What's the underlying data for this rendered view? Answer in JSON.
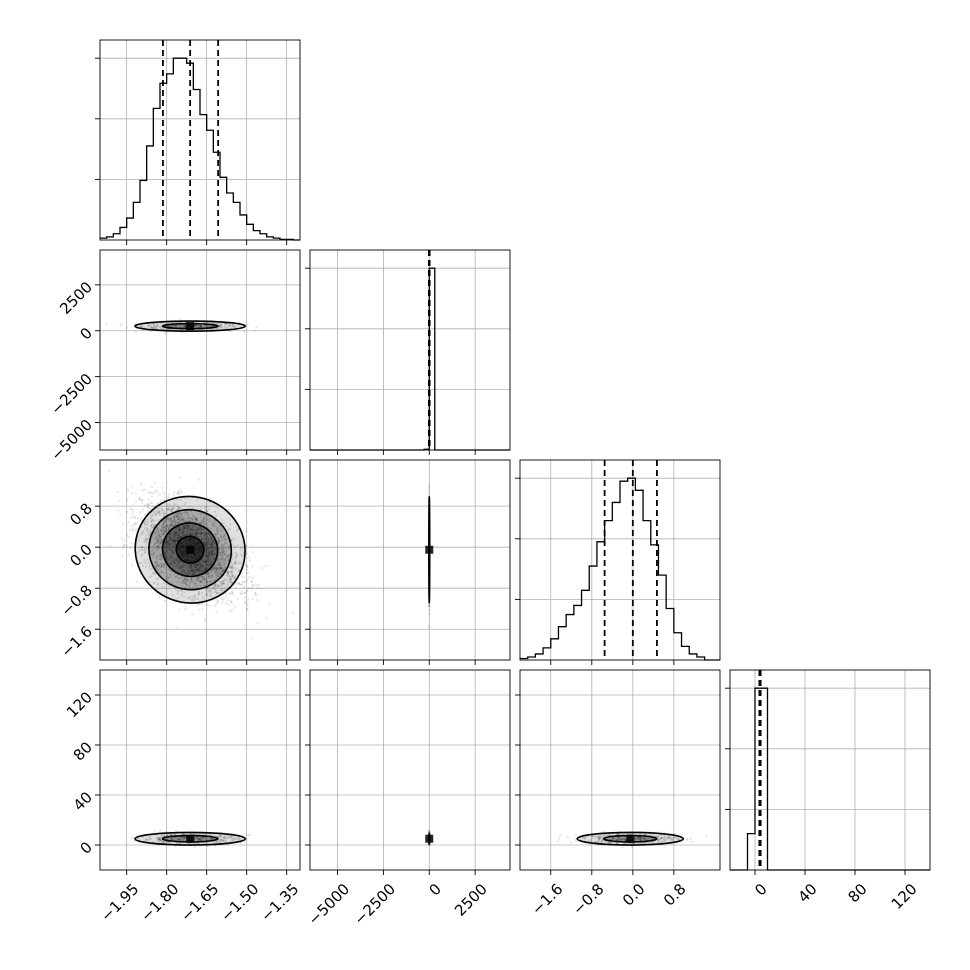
{
  "chart_data": {
    "type": "corner",
    "parameters": [
      {
        "label": "",
        "range": [
          -2.05,
          -1.3
        ],
        "ticks": [
          -1.95,
          -1.8,
          -1.65,
          -1.5,
          -1.35
        ],
        "tick_labels": [
          "−1.95",
          "−1.80",
          "−1.65",
          "−1.50",
          "−1.35"
        ],
        "quantiles": [
          -1.814,
          -1.712,
          -1.607
        ],
        "hist": {
          "edges": [
            -2.05,
            -2.025,
            -2.0,
            -1.975,
            -1.95,
            -1.925,
            -1.9,
            -1.875,
            -1.85,
            -1.825,
            -1.8,
            -1.775,
            -1.75,
            -1.725,
            -1.7,
            -1.675,
            -1.65,
            -1.625,
            -1.6,
            -1.575,
            -1.55,
            -1.525,
            -1.5,
            -1.475,
            -1.45,
            -1.425,
            -1.4,
            -1.375,
            -1.35,
            -1.325,
            -1.3
          ],
          "counts": [
            3,
            5,
            10,
            20,
            35,
            60,
            95,
            150,
            210,
            250,
            265,
            290,
            290,
            282,
            240,
            200,
            175,
            140,
            100,
            75,
            60,
            40,
            25,
            15,
            10,
            5,
            3,
            1,
            1,
            0
          ]
        }
      },
      {
        "label": "",
        "range": [
          -6500,
          4400
        ],
        "ticks": [
          -5000,
          -2500,
          0,
          2500
        ],
        "tick_labels": [
          "−5000",
          "−2500",
          "0",
          "2500"
        ],
        "quantiles": [
          -20,
          0,
          20
        ],
        "hist": {
          "edges": [
            -6500,
            -280,
            0,
            300,
            4400
          ],
          "counts": [
            0,
            10,
            2500,
            0
          ]
        }
      },
      {
        "label": "",
        "range": [
          -2.2,
          1.7
        ],
        "ticks": [
          -1.6,
          -0.8,
          0.0,
          0.8
        ],
        "tick_labels": [
          "−1.6",
          "−0.8",
          "0.0",
          "0.8"
        ],
        "quantiles": [
          -0.55,
          0.0,
          0.47
        ],
        "hist": {
          "edges": [
            -2.2,
            -2.05,
            -1.9,
            -1.75,
            -1.6,
            -1.45,
            -1.3,
            -1.15,
            -1.0,
            -0.85,
            -0.7,
            -0.55,
            -0.4,
            -0.25,
            -0.1,
            0.05,
            0.2,
            0.35,
            0.5,
            0.65,
            0.8,
            0.95,
            1.1,
            1.25,
            1.4,
            1.55,
            1.7
          ],
          "counts": [
            5,
            10,
            20,
            40,
            70,
            110,
            150,
            180,
            230,
            310,
            390,
            460,
            520,
            590,
            600,
            560,
            460,
            380,
            280,
            170,
            90,
            45,
            20,
            10,
            0,
            0
          ]
        }
      },
      {
        "label": "",
        "range": [
          -20,
          140
        ],
        "ticks": [
          0,
          40,
          80,
          120
        ],
        "tick_labels": [
          "0",
          "40",
          "80",
          "120"
        ],
        "quantiles": [
          3.5,
          4.0,
          4.5
        ],
        "hist": {
          "edges": [
            -20,
            -6,
            0,
            10,
            140
          ],
          "counts": [
            0,
            30,
            150,
            0
          ]
        }
      }
    ],
    "pairs": [
      {
        "x": 0,
        "y": 1,
        "center": [
          -1.712,
          250
        ],
        "spread": [
          0.09,
          120
        ],
        "samples": 500,
        "contour_levels": [
          1,
          2
        ]
      },
      {
        "x": 0,
        "y": 2,
        "center": [
          -1.712,
          -0.05
        ],
        "spread": [
          0.09,
          0.45
        ],
        "rho": -0.45,
        "samples": 3200,
        "contour_levels": [
          0.5,
          1,
          1.5,
          2
        ]
      },
      {
        "x": 0,
        "y": 3,
        "center": [
          -1.712,
          5
        ],
        "spread": [
          0.09,
          2.2
        ],
        "samples": 500,
        "contour_levels": [
          1,
          2
        ]
      },
      {
        "x": 1,
        "y": 2,
        "center": [
          0,
          -0.05
        ],
        "spread": [
          10,
          0.45
        ],
        "samples": 500,
        "contour_levels": [
          1,
          2
        ]
      },
      {
        "x": 1,
        "y": 3,
        "center": [
          0,
          5
        ],
        "spread": [
          10,
          2.2
        ],
        "samples": 300,
        "contour_levels": [
          1
        ]
      },
      {
        "x": 2,
        "y": 3,
        "center": [
          -0.05,
          5
        ],
        "spread": [
          0.45,
          2.2
        ],
        "samples": 500,
        "contour_levels": [
          1,
          2
        ]
      }
    ],
    "grid": true,
    "colors": {
      "line": "#000000",
      "grid": "#b0b0b0",
      "density": "#000000"
    }
  }
}
